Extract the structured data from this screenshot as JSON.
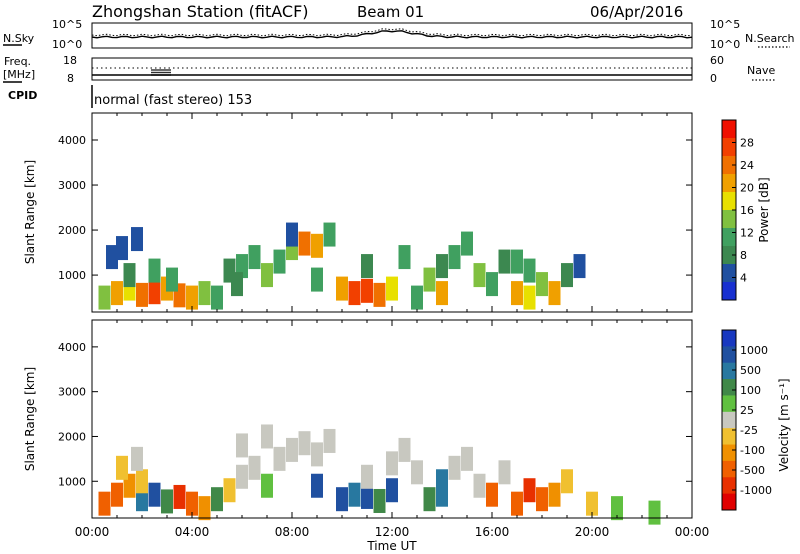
{
  "header": {
    "station": "Zhongshan Station (fitACF)",
    "beam": "Beam 01",
    "date": "06/Apr/2016"
  },
  "panels": {
    "noise": {
      "left_label": "N.Sky",
      "right_label": "N.Search",
      "left_ticks": [
        "10^5",
        "10^0"
      ],
      "right_ticks": [
        "10^5",
        "10^0"
      ]
    },
    "freq": {
      "left_label_1": "Freq.",
      "left_label_2": "[MHz]",
      "right_label": "Nave",
      "left_ticks": [
        "18",
        "8"
      ],
      "right_ticks": [
        "60",
        "0"
      ]
    },
    "cpid": {
      "label": "CPID",
      "text": "normal (fast stereo) 153"
    }
  },
  "colorbars": {
    "power": {
      "label": "Power [dB]",
      "ticks": [
        "28",
        "24",
        "20",
        "16",
        "12",
        "8",
        "4"
      ],
      "colors": [
        "#f01000",
        "#f24000",
        "#f07000",
        "#f0a000",
        "#e8e000",
        "#80c040",
        "#40a060",
        "#3c8850",
        "#2050a0",
        "#1830d0"
      ]
    },
    "velocity": {
      "label": "Velocity [m s⁻¹]",
      "ticks": [
        "1000",
        "500",
        "100",
        "25",
        "-25",
        "-100",
        "-500",
        "-1000"
      ],
      "colors": [
        "#1838c0",
        "#2050a0",
        "#2878a0",
        "#408848",
        "#60c040",
        "#c8c8c0",
        "#f0c030",
        "#f09000",
        "#f06000",
        "#e83000",
        "#e00000"
      ]
    }
  },
  "chart_data": [
    {
      "type": "heatmap",
      "title": "Power",
      "ylabel": "Slant Range [km]",
      "xlabel": "",
      "xlim": [
        "00:00",
        "24:00"
      ],
      "ylim": [
        180,
        4600
      ],
      "yticks": [
        "1000",
        "2000",
        "3000",
        "4000"
      ],
      "xticks": [
        "00:00",
        "04:00",
        "08:00",
        "12:00",
        "16:00",
        "20:00",
        "00:00"
      ],
      "cbar_range_db": [
        0,
        32
      ],
      "cells": [
        [
          0.5,
          500,
          14
        ],
        [
          1.0,
          600,
          20
        ],
        [
          1.5,
          700,
          18
        ],
        [
          2.0,
          560,
          24
        ],
        [
          2.5,
          620,
          26
        ],
        [
          3.0,
          700,
          22
        ],
        [
          3.5,
          550,
          24
        ],
        [
          4.0,
          500,
          20
        ],
        [
          4.5,
          600,
          14
        ],
        [
          1.5,
          1000,
          8
        ],
        [
          2.5,
          1100,
          10
        ],
        [
          3.2,
          900,
          12
        ],
        [
          0.8,
          1400,
          6
        ],
        [
          1.2,
          1600,
          6
        ],
        [
          1.8,
          1800,
          4
        ],
        [
          5.0,
          500,
          10
        ],
        [
          5.5,
          1100,
          8
        ],
        [
          6.0,
          1200,
          12
        ],
        [
          6.5,
          1400,
          10
        ],
        [
          7.0,
          1000,
          14
        ],
        [
          7.5,
          1300,
          12
        ],
        [
          8.0,
          1600,
          16
        ],
        [
          8.5,
          1700,
          24
        ],
        [
          9.0,
          1650,
          20
        ],
        [
          9.5,
          1900,
          10
        ],
        [
          8.0,
          1900,
          6
        ],
        [
          10.0,
          700,
          22
        ],
        [
          10.5,
          600,
          26
        ],
        [
          11.0,
          650,
          28
        ],
        [
          11.5,
          560,
          24
        ],
        [
          12.0,
          700,
          18
        ],
        [
          11.0,
          1200,
          8
        ],
        [
          12.5,
          1400,
          10
        ],
        [
          13.0,
          500,
          12
        ],
        [
          13.5,
          900,
          14
        ],
        [
          14.0,
          600,
          20
        ],
        [
          14.0,
          1200,
          8
        ],
        [
          14.5,
          1400,
          12
        ],
        [
          15.0,
          1700,
          10
        ],
        [
          15.5,
          1000,
          14
        ],
        [
          16.0,
          800,
          10
        ],
        [
          16.5,
          1300,
          8
        ],
        [
          17.0,
          600,
          22
        ],
        [
          17.5,
          500,
          18
        ],
        [
          18.0,
          800,
          16
        ],
        [
          18.5,
          600,
          20
        ],
        [
          19.0,
          1000,
          8
        ],
        [
          19.5,
          1200,
          6
        ],
        [
          17.0,
          1300,
          10
        ],
        [
          17.5,
          1100,
          12
        ],
        [
          9.0,
          900,
          10
        ],
        [
          5.8,
          800,
          8
        ]
      ]
    },
    {
      "type": "heatmap",
      "title": "Velocity",
      "ylabel": "Slant Range [km]",
      "xlabel": "Time UT",
      "xlim": [
        "00:00",
        "24:00"
      ],
      "ylim": [
        180,
        4600
      ],
      "yticks": [
        "1000",
        "2000",
        "3000",
        "4000"
      ],
      "xticks": [
        "00:00",
        "04:00",
        "08:00",
        "12:00",
        "16:00",
        "20:00",
        "00:00"
      ],
      "cells": [
        [
          0.5,
          500,
          -500
        ],
        [
          1.0,
          700,
          -300
        ],
        [
          1.5,
          900,
          -200
        ],
        [
          2.0,
          600,
          300
        ],
        [
          2.5,
          700,
          600
        ],
        [
          3.0,
          550,
          200
        ],
        [
          3.5,
          650,
          -600
        ],
        [
          4.0,
          500,
          -400
        ],
        [
          4.5,
          400,
          -200
        ],
        [
          2.0,
          1000,
          -100
        ],
        [
          1.2,
          1300,
          -40
        ],
        [
          1.8,
          1500,
          -20
        ],
        [
          5.0,
          600,
          100
        ],
        [
          5.5,
          800,
          -30
        ],
        [
          6.0,
          1100,
          0
        ],
        [
          6.5,
          1300,
          10
        ],
        [
          7.0,
          900,
          50
        ],
        [
          7.5,
          1500,
          0
        ],
        [
          8.0,
          1700,
          0
        ],
        [
          8.5,
          1850,
          -10
        ],
        [
          9.0,
          1600,
          -20
        ],
        [
          9.5,
          1900,
          0
        ],
        [
          10.0,
          600,
          500
        ],
        [
          10.5,
          700,
          300
        ],
        [
          11.0,
          650,
          600
        ],
        [
          11.5,
          560,
          200
        ],
        [
          12.0,
          1400,
          0
        ],
        [
          12.5,
          1700,
          0
        ],
        [
          13.0,
          1200,
          -10
        ],
        [
          13.5,
          600,
          150
        ],
        [
          14.0,
          700,
          400
        ],
        [
          14.5,
          1300,
          0
        ],
        [
          15.0,
          1500,
          -5
        ],
        [
          15.5,
          900,
          20
        ],
        [
          16.0,
          700,
          -300
        ],
        [
          16.5,
          1200,
          10
        ],
        [
          17.0,
          500,
          -500
        ],
        [
          17.5,
          800,
          -800
        ],
        [
          18.0,
          600,
          -300
        ],
        [
          18.5,
          700,
          -200
        ],
        [
          19.0,
          1000,
          -60
        ],
        [
          20.0,
          500,
          -40
        ],
        [
          21.0,
          400,
          50
        ],
        [
          22.5,
          300,
          60
        ],
        [
          9.0,
          900,
          600
        ],
        [
          12.0,
          800,
          700
        ],
        [
          14.0,
          1000,
          300
        ],
        [
          11.0,
          1100,
          -20
        ],
        [
          6.0,
          1800,
          -10
        ],
        [
          7.0,
          2000,
          0
        ]
      ]
    }
  ]
}
